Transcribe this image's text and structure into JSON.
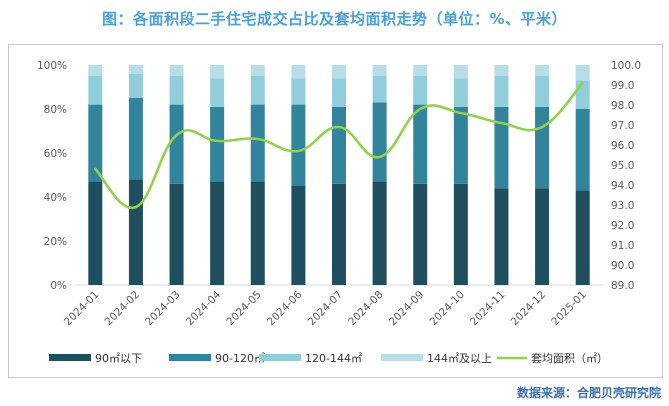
{
  "title": "图：各面积段二手住宅成交占比及套均面积走势（单位：%、平米）",
  "source": "数据来源：合肥贝壳研究院",
  "colors": {
    "seg1": "#1f4e5f",
    "seg2": "#31849b",
    "seg3": "#92cddc",
    "seg4": "#b7dee8",
    "line": "#92d050",
    "axis": "#d9d9d9",
    "title": "#4a9fd8"
  },
  "chart_data": {
    "type": "bar",
    "stacked": true,
    "categories": [
      "2024-01",
      "2024-02",
      "2024-03",
      "2024-04",
      "2024-05",
      "2024-06",
      "2024-07",
      "2024-08",
      "2024-09",
      "2024-10",
      "2024-11",
      "2024-12",
      "2025-01"
    ],
    "series": [
      {
        "name": "90㎡以下",
        "values": [
          47,
          48,
          46,
          47,
          47,
          45,
          46,
          47,
          46,
          46,
          44,
          44,
          43
        ]
      },
      {
        "name": "90-120㎡",
        "values": [
          35,
          37,
          36,
          34,
          35,
          37,
          35,
          36,
          36,
          35,
          37,
          37,
          37
        ]
      },
      {
        "name": "120-144㎡",
        "values": [
          13,
          11,
          13,
          13,
          13,
          12,
          13,
          12,
          13,
          13,
          14,
          14,
          13
        ]
      },
      {
        "name": "144㎡及以上",
        "values": [
          5,
          4,
          5,
          6,
          5,
          6,
          6,
          5,
          5,
          6,
          5,
          5,
          7
        ]
      }
    ],
    "line_series": {
      "name": "套均面积（㎡）",
      "values": [
        94.8,
        92.9,
        96.5,
        96.2,
        96.3,
        95.7,
        96.9,
        95.4,
        97.8,
        97.6,
        97.1,
        96.9,
        99.1
      ]
    },
    "y_left": {
      "min": 0,
      "max": 100,
      "ticks": [
        "0%",
        "20%",
        "40%",
        "60%",
        "80%",
        "100%"
      ]
    },
    "y_right": {
      "min": 89.0,
      "max": 100.0,
      "ticks": [
        "89.0",
        "90.0",
        "91.0",
        "92.0",
        "93.0",
        "94.0",
        "95.0",
        "96.0",
        "97.0",
        "98.0",
        "99.0",
        "100.0"
      ]
    },
    "grid": false,
    "legend": "bottom"
  }
}
